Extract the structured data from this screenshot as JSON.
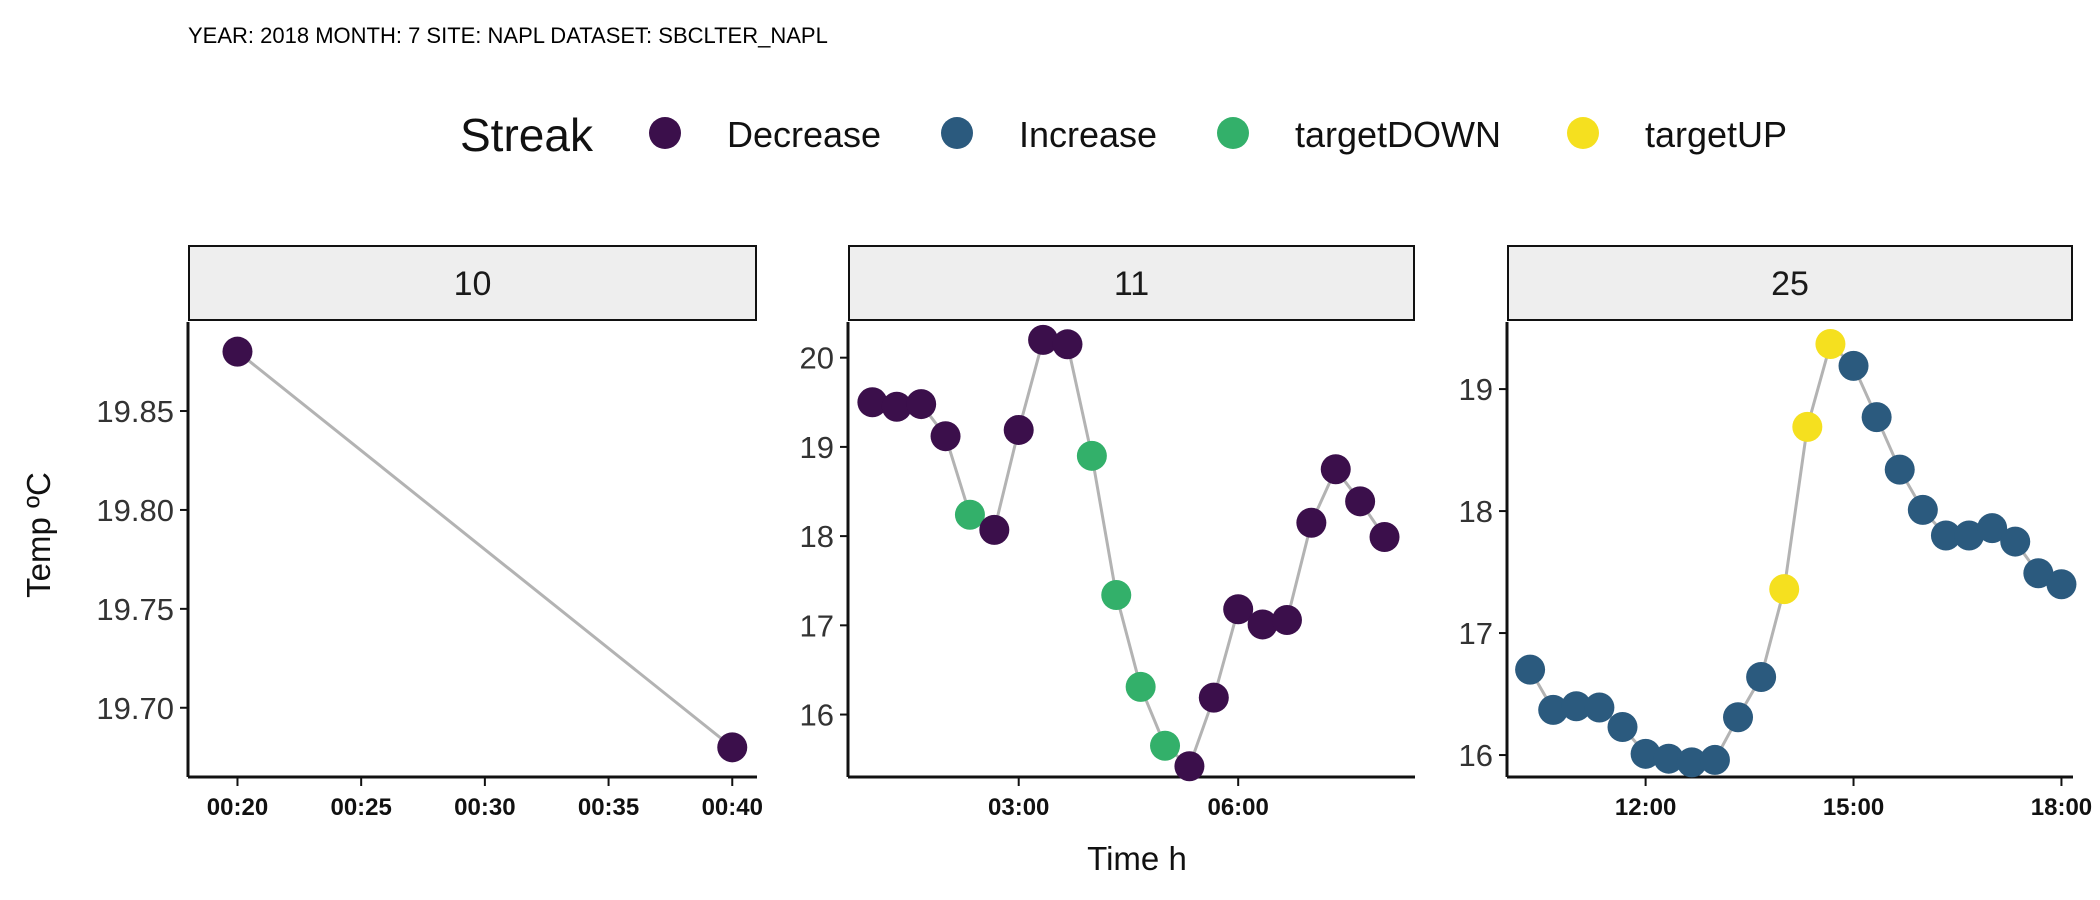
{
  "caption": "YEAR: 2018 MONTH: 7 SITE:  NAPL DATASET:  SBCLTER_NAPL",
  "colors": {
    "Decrease": "#3b0f4b",
    "Increase": "#2b5a7e",
    "targetDOWN": "#33b06a",
    "targetUP": "#f5e01f",
    "line": "#b3b3b3"
  },
  "chart_data": {
    "type": "scatter",
    "xlabel": "Time h",
    "ylabel": "Temp ºC",
    "legend": {
      "title": "Streak",
      "position": "top",
      "entries": [
        "Decrease",
        "Increase",
        "targetDOWN",
        "targetUP"
      ]
    },
    "grid": false,
    "panels": [
      {
        "facet": "10",
        "xlim": [
          "00:18",
          "00:41"
        ],
        "ylim": [
          19.665,
          19.895
        ],
        "xticks": [
          "00:20",
          "00:25",
          "00:30",
          "00:35",
          "00:40"
        ],
        "yticks": [
          19.7,
          19.75,
          19.8,
          19.85
        ],
        "ytick_labels": [
          "19.70",
          "19.75",
          "19.80",
          "19.85"
        ],
        "points": [
          {
            "x": "00:20",
            "y": 19.88,
            "streak": "Decrease"
          },
          {
            "x": "00:40",
            "y": 19.68,
            "streak": "Decrease"
          }
        ]
      },
      {
        "facet": "11",
        "xlim": [
          "00:40",
          "08:25"
        ],
        "ylim": [
          15.3,
          20.4
        ],
        "xticks": [
          "03:00",
          "06:00"
        ],
        "yticks": [
          16,
          17,
          18,
          19,
          20
        ],
        "ytick_labels": [
          "16",
          "17",
          "18",
          "19",
          "20"
        ],
        "points": [
          {
            "x": "01:00",
            "y": 19.5,
            "streak": "Decrease"
          },
          {
            "x": "01:20",
            "y": 19.45,
            "streak": "Decrease"
          },
          {
            "x": "01:40",
            "y": 19.48,
            "streak": "Decrease"
          },
          {
            "x": "02:00",
            "y": 19.12,
            "streak": "Decrease"
          },
          {
            "x": "02:20",
            "y": 18.24,
            "streak": "targetDOWN"
          },
          {
            "x": "02:40",
            "y": 18.07,
            "streak": "Decrease"
          },
          {
            "x": "03:00",
            "y": 19.19,
            "streak": "Decrease"
          },
          {
            "x": "03:20",
            "y": 20.2,
            "streak": "Decrease"
          },
          {
            "x": "03:40",
            "y": 20.15,
            "streak": "Decrease"
          },
          {
            "x": "04:00",
            "y": 18.9,
            "streak": "targetDOWN"
          },
          {
            "x": "04:20",
            "y": 17.34,
            "streak": "targetDOWN"
          },
          {
            "x": "04:40",
            "y": 16.31,
            "streak": "targetDOWN"
          },
          {
            "x": "05:00",
            "y": 15.65,
            "streak": "targetDOWN"
          },
          {
            "x": "05:20",
            "y": 15.42,
            "streak": "Decrease"
          },
          {
            "x": "05:40",
            "y": 16.19,
            "streak": "Decrease"
          },
          {
            "x": "06:00",
            "y": 17.18,
            "streak": "Decrease"
          },
          {
            "x": "06:20",
            "y": 17.01,
            "streak": "Decrease"
          },
          {
            "x": "06:40",
            "y": 17.06,
            "streak": "Decrease"
          },
          {
            "x": "07:00",
            "y": 18.15,
            "streak": "Decrease"
          },
          {
            "x": "07:20",
            "y": 18.75,
            "streak": "Decrease"
          },
          {
            "x": "07:40",
            "y": 18.39,
            "streak": "Decrease"
          },
          {
            "x": "08:00",
            "y": 17.99,
            "streak": "Decrease"
          }
        ]
      },
      {
        "facet": "25",
        "xlim": [
          "10:00",
          "18:10"
        ],
        "ylim": [
          15.82,
          19.55
        ],
        "xticks": [
          "12:00",
          "15:00",
          "18:00"
        ],
        "yticks": [
          16,
          17,
          18,
          19
        ],
        "ytick_labels": [
          "16",
          "17",
          "18",
          "19"
        ],
        "points": [
          {
            "x": "10:20",
            "y": 16.7,
            "streak": "Increase"
          },
          {
            "x": "10:40",
            "y": 16.37,
            "streak": "Increase"
          },
          {
            "x": "11:00",
            "y": 16.4,
            "streak": "Increase"
          },
          {
            "x": "11:20",
            "y": 16.39,
            "streak": "Increase"
          },
          {
            "x": "11:40",
            "y": 16.23,
            "streak": "Increase"
          },
          {
            "x": "12:00",
            "y": 16.01,
            "streak": "Increase"
          },
          {
            "x": "12:20",
            "y": 15.97,
            "streak": "Increase"
          },
          {
            "x": "12:40",
            "y": 15.94,
            "streak": "Increase"
          },
          {
            "x": "13:00",
            "y": 15.96,
            "streak": "Increase"
          },
          {
            "x": "13:20",
            "y": 16.31,
            "streak": "Increase"
          },
          {
            "x": "13:40",
            "y": 16.64,
            "streak": "Increase"
          },
          {
            "x": "14:00",
            "y": 17.36,
            "streak": "targetUP"
          },
          {
            "x": "14:20",
            "y": 18.69,
            "streak": "targetUP"
          },
          {
            "x": "14:40",
            "y": 19.37,
            "streak": "targetUP"
          },
          {
            "x": "15:00",
            "y": 19.19,
            "streak": "Increase"
          },
          {
            "x": "15:20",
            "y": 18.77,
            "streak": "Increase"
          },
          {
            "x": "15:40",
            "y": 18.34,
            "streak": "Increase"
          },
          {
            "x": "16:00",
            "y": 18.01,
            "streak": "Increase"
          },
          {
            "x": "16:20",
            "y": 17.8,
            "streak": "Increase"
          },
          {
            "x": "16:40",
            "y": 17.8,
            "streak": "Increase"
          },
          {
            "x": "17:00",
            "y": 17.86,
            "streak": "Increase"
          },
          {
            "x": "17:20",
            "y": 17.75,
            "streak": "Increase"
          },
          {
            "x": "17:40",
            "y": 17.49,
            "streak": "Increase"
          },
          {
            "x": "18:00",
            "y": 17.4,
            "streak": "Increase"
          }
        ]
      }
    ]
  }
}
